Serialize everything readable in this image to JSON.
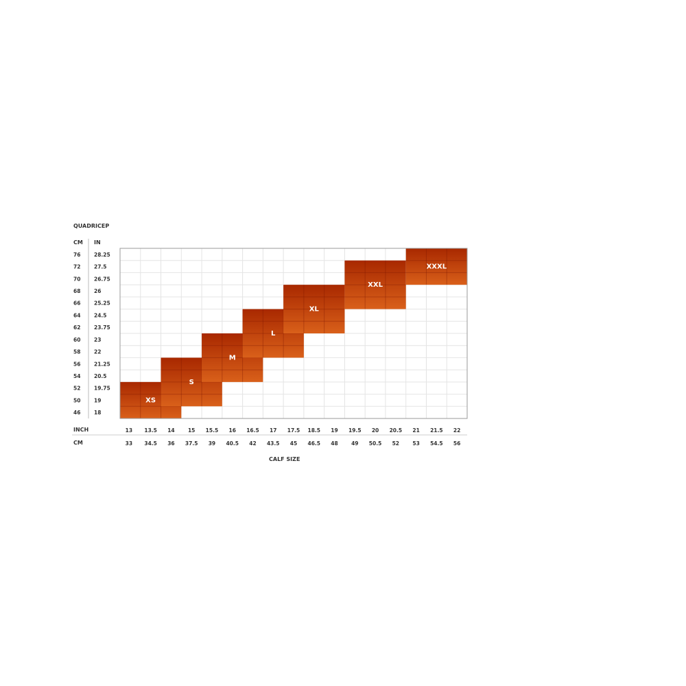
{
  "chart_data": {
    "type": "heatmap",
    "title": "QUADRICEP",
    "y_headers": {
      "cm": "CM",
      "in": "IN"
    },
    "y_cm": [
      76,
      72,
      70,
      68,
      66,
      64,
      62,
      60,
      58,
      56,
      54,
      52,
      50,
      46
    ],
    "y_in": [
      "28.25",
      "27.5",
      "26.75",
      "26",
      "25.25",
      "24.5",
      "23.75",
      "23",
      "22",
      "21.25",
      "20.5",
      "19.75",
      "19",
      "18"
    ],
    "x_headers": {
      "inch": "INCH",
      "cm": "CM"
    },
    "x_inch": [
      "13",
      "13.5",
      "14",
      "15",
      "15.5",
      "16",
      "16.5",
      "17",
      "17.5",
      "18.5",
      "19",
      "19.5",
      "20",
      "20.5",
      "21",
      "21.5",
      "22"
    ],
    "x_cm": [
      "33",
      "34.5",
      "36",
      "37.5",
      "39",
      "40.5",
      "42",
      "43.5",
      "45",
      "46.5",
      "48",
      "49",
      "50.5",
      "52",
      "53",
      "54.5",
      "56"
    ],
    "xlabel": "CALF SIZE",
    "grid": true,
    "colors": {
      "block_dark": "#a82800",
      "block_light": "#d9601a",
      "grid": "#e4e4e4",
      "border": "#999999"
    },
    "sizes": [
      {
        "label": "XS",
        "calf_inch": [
          "13",
          "14"
        ],
        "quad_cm": [
          46,
          52
        ]
      },
      {
        "label": "S",
        "calf_inch": [
          "14",
          "15.5"
        ],
        "quad_cm": [
          50,
          56
        ]
      },
      {
        "label": "M",
        "calf_inch": [
          "15.5",
          "16.5"
        ],
        "quad_cm": [
          54,
          60
        ]
      },
      {
        "label": "L",
        "calf_inch": [
          "16.5",
          "17.5"
        ],
        "quad_cm": [
          58,
          64
        ]
      },
      {
        "label": "XL",
        "calf_inch": [
          "17.5",
          "19"
        ],
        "quad_cm": [
          62,
          68
        ]
      },
      {
        "label": "XXL",
        "calf_inch": [
          "19.5",
          "20.5"
        ],
        "quad_cm": [
          66,
          72
        ]
      },
      {
        "label": "XXXL",
        "calf_inch": [
          "21",
          "22"
        ],
        "quad_cm": [
          70,
          76
        ]
      }
    ]
  }
}
